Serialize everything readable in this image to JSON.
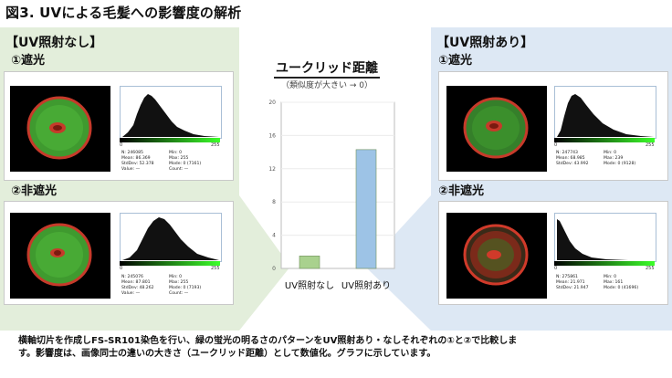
{
  "title": "図3. UVによる毛髪への影響度の解析",
  "left_panel": {
    "header": "【UV照射なし】",
    "shade_label": "①遮光",
    "nonshade_label": "②非遮光",
    "shade_stats": {
      "n": "N: 246085",
      "mean": "Mean: 86.369",
      "stddev": "StdDev: 52.378",
      "value": "Value: —",
      "min": "Min: 0",
      "max": "Max: 255",
      "mode": "Mode: 0 (7161)",
      "count": "Count: —"
    },
    "nonshade_stats": {
      "n": "N: 245076",
      "mean": "Mean: 87.801",
      "stddev": "StdDev: 48.262",
      "value": "Value: —",
      "min": "Min: 0",
      "max": "Max: 255",
      "mode": "Mode: 0 (7193)",
      "count": "Count: —"
    }
  },
  "right_panel": {
    "header": "【UV照射あり】",
    "shade_label": "①遮光",
    "nonshade_label": "②非遮光",
    "shade_stats": {
      "n": "N: 247743",
      "mean": "Mean: 68.985",
      "stddev": "StdDev: 43.992",
      "min": "Min: 0",
      "max": "Max: 239",
      "mode": "Mode: 0 (9128)"
    },
    "nonshade_stats": {
      "n": "N: 275861",
      "mean": "Mean: 21.971",
      "stddev": "StdDev: 21.947",
      "min": "Min: 0",
      "max": "Max: 161",
      "mode": "Mode: 0 (41696)"
    }
  },
  "hist_axis": {
    "min": "0",
    "max": "255"
  },
  "chart_data": {
    "type": "bar",
    "title": "ユークリッド距離",
    "subtitle": "（類似度が大きい → 0）",
    "categories": [
      "UV照射なし",
      "UV照射あり"
    ],
    "values": [
      1.5,
      14.3
    ],
    "colors": [
      "#a9d18e",
      "#9dc3e6"
    ],
    "ylim": [
      0,
      20
    ],
    "yticks": [
      0,
      4,
      8,
      12,
      16,
      20
    ]
  },
  "footer": {
    "line1": "横軸切片を作成しFS-SR101染色を行い、緑の蛍光の明るさのパターンをUV照射あり・なしそれぞれの①と②で比較しま",
    "line2": "す。影響度は、画像同士の違いの大きさ（ユークリッド距離）として数値化。グラフに示しています。"
  }
}
